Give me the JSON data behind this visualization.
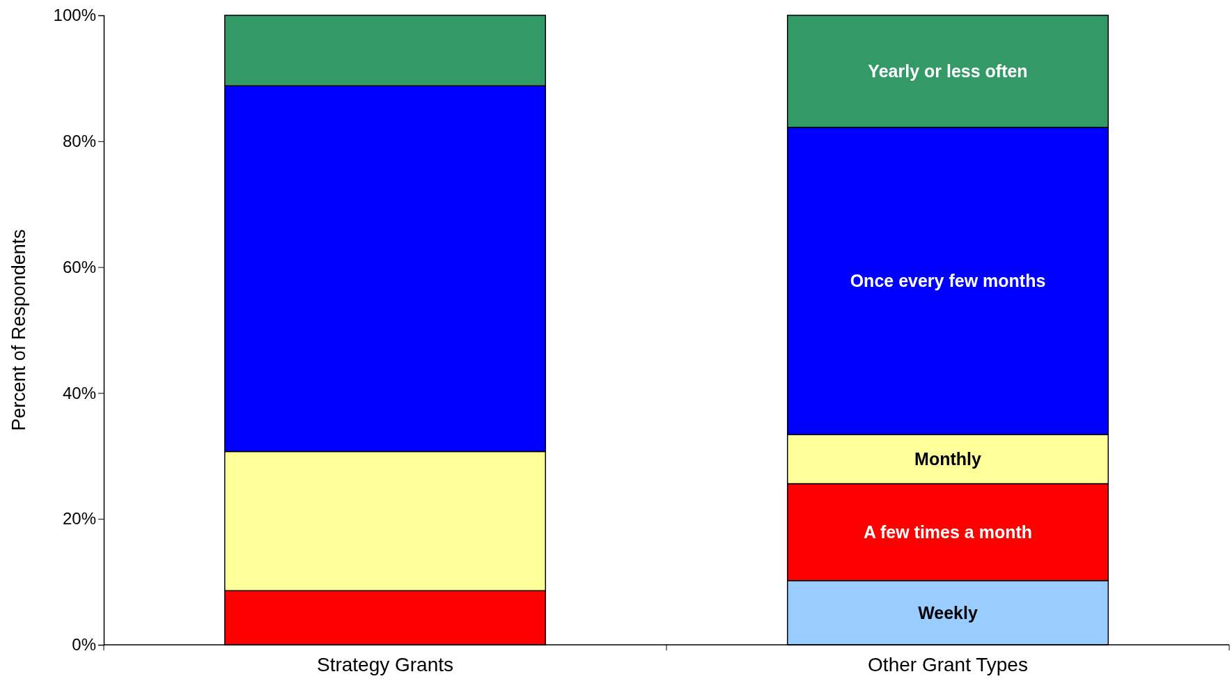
{
  "chart_data": {
    "type": "bar",
    "stacked": true,
    "ylabel": "Percent of Respondents",
    "categories": [
      "Strategy Grants",
      "Other Grant Types"
    ],
    "series": [
      {
        "name": "Weekly",
        "color": "#99ccff",
        "values": [
          0,
          10.2
        ]
      },
      {
        "name": "A few times a month",
        "color": "#ff0000",
        "values": [
          8.6,
          15.4
        ]
      },
      {
        "name": "Monthly",
        "color": "#ffff99",
        "values": [
          22.1,
          7.8
        ]
      },
      {
        "name": "Once every few months",
        "color": "#0000ff",
        "values": [
          58.1,
          48.8
        ]
      },
      {
        "name": "Yearly or less often",
        "color": "#339966",
        "values": [
          11.2,
          17.8
        ]
      }
    ],
    "ylim": [
      0,
      100
    ],
    "yticks": [
      {
        "value": 0,
        "label": "0%"
      },
      {
        "value": 20,
        "label": "20%"
      },
      {
        "value": 40,
        "label": "40%"
      },
      {
        "value": 60,
        "label": "60%"
      },
      {
        "value": 80,
        "label": "80%"
      },
      {
        "value": 100,
        "label": "100%"
      }
    ],
    "grid": false,
    "legend": false
  }
}
